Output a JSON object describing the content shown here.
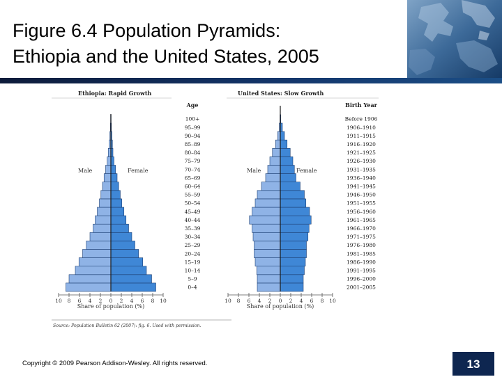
{
  "slide": {
    "title_line1": "Figure 6.4 Population Pyramids:",
    "title_line2": "Ethiopia and the United States, 2005",
    "copyright": "Copyright © 2009 Pearson Addison-Wesley. All rights reserved.",
    "slide_number": "13",
    "source_note": "Source: Population Bulletin 62 (2007): fig. 6. Used with permission."
  },
  "colors": {
    "male": "#8fb3e6",
    "female": "#3f87d6",
    "outline": "#1d3f73",
    "header_rule": "#0d1b3a",
    "number_box": "#0e2650"
  },
  "chart_data": [
    {
      "type": "bar",
      "subtype": "population-pyramid",
      "title": "Ethiopia: Rapid Growth",
      "male_label": "Male",
      "female_label": "Female",
      "xlabel": "Share of population (%)",
      "xlim": [
        -10,
        10
      ],
      "x_ticks": [
        "10",
        "8",
        "6",
        "4",
        "2",
        "0",
        "2",
        "4",
        "6",
        "8",
        "10"
      ],
      "categories": [
        "0–4",
        "5–9",
        "10–14",
        "15–19",
        "20–24",
        "25–29",
        "30–34",
        "35–39",
        "40–44",
        "45–49",
        "50–54",
        "55–59",
        "60–64",
        "65–69",
        "70–74",
        "75–79",
        "80–84",
        "85–89",
        "90–94",
        "95–99",
        "100+"
      ],
      "series": [
        {
          "name": "Male",
          "values": [
            8.6,
            8.0,
            6.8,
            6.1,
            5.4,
            4.7,
            4.0,
            3.4,
            3.0,
            2.6,
            2.2,
            1.9,
            1.6,
            1.3,
            1.0,
            0.7,
            0.5,
            0.3,
            0.2,
            0.1,
            0.05
          ]
        },
        {
          "name": "Female",
          "values": [
            8.6,
            7.8,
            6.8,
            6.1,
            5.3,
            4.6,
            4.0,
            3.4,
            2.9,
            2.5,
            2.1,
            1.8,
            1.5,
            1.2,
            0.9,
            0.6,
            0.4,
            0.3,
            0.2,
            0.1,
            0.05
          ]
        }
      ]
    },
    {
      "type": "bar",
      "subtype": "population-pyramid",
      "title": "United States: Slow Growth",
      "male_label": "Male",
      "female_label": "Female",
      "xlabel": "Share of population (%)",
      "xlim": [
        -10,
        10
      ],
      "x_ticks": [
        "10",
        "8",
        "6",
        "4",
        "2",
        "0",
        "2",
        "4",
        "6",
        "8",
        "10"
      ],
      "categories": [
        "0–4",
        "5–9",
        "10–14",
        "15–19",
        "20–24",
        "25–29",
        "30–34",
        "35–39",
        "40–44",
        "45–49",
        "50–54",
        "55–59",
        "60–64",
        "65–69",
        "70–74",
        "75–79",
        "80–84",
        "85–89",
        "90–94",
        "95–99",
        "100+"
      ],
      "age_header": "Age",
      "birth_year_header": "Birth Year",
      "birth_years": [
        "2001–2005",
        "1996–2000",
        "1991–1995",
        "1986–1990",
        "1981–1985",
        "1976–1980",
        "1971–1975",
        "1966–1970",
        "1961–1965",
        "1956–1960",
        "1951–1955",
        "1946–1950",
        "1941–1945",
        "1936–1940",
        "1931–1935",
        "1926–1930",
        "1921–1925",
        "1916–1920",
        "1911–1915",
        "1906–1910",
        "Before 1906"
      ],
      "series": [
        {
          "name": "Male",
          "values": [
            4.4,
            4.4,
            4.5,
            4.8,
            5.0,
            5.0,
            5.2,
            5.4,
            5.9,
            5.4,
            4.8,
            4.4,
            3.6,
            2.8,
            2.4,
            2.0,
            1.5,
            0.9,
            0.5,
            0.2,
            0.05
          ]
        },
        {
          "name": "Female",
          "values": [
            4.4,
            4.4,
            4.6,
            4.8,
            5.0,
            5.0,
            5.3,
            5.5,
            5.9,
            5.6,
            4.9,
            4.6,
            3.8,
            3.0,
            2.7,
            2.4,
            1.9,
            1.3,
            0.8,
            0.4,
            0.1
          ]
        }
      ]
    }
  ]
}
